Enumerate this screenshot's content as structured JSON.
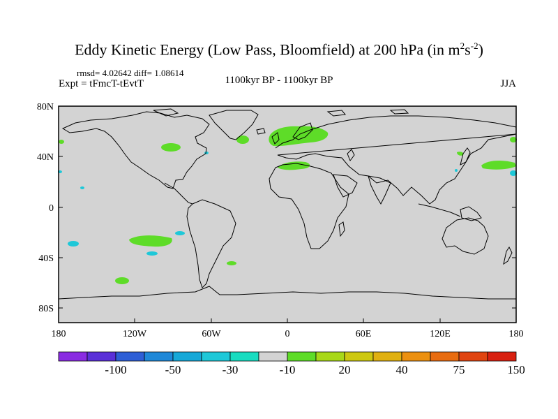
{
  "title_main": "Eddy Kinetic Energy (Low Pass, Bloomfield) at 200 hPa (in m",
  "title_sup1": "2",
  "title_mid": "s",
  "title_sup2": "-2",
  "title_end": ")",
  "stats": "rmsd= 4.02642 diff= 1.08614",
  "expt": "Expt = tFmcT-tEvtT",
  "period": "1100kyr BP - 1100kyr BP",
  "season": "JJA",
  "axes": {
    "lat_labels": [
      "80N",
      "40N",
      "0",
      "40S",
      "80S"
    ],
    "lon_labels": [
      "180",
      "120W",
      "60W",
      "0",
      "60E",
      "120E",
      "180"
    ]
  },
  "colorbar": {
    "colors": [
      "#8a2be2",
      "#5a30d8",
      "#2e5fd6",
      "#1f88d8",
      "#16a8d8",
      "#1ec8d8",
      "#18dcc0",
      "#d3d3d3",
      "#5edc28",
      "#a8d818",
      "#cdc810",
      "#e0b010",
      "#ec9010",
      "#e86c10",
      "#e04410",
      "#d82010"
    ],
    "labels": [
      "-100",
      "-50",
      "-30",
      "-10",
      "20",
      "40",
      "75",
      "150"
    ]
  },
  "colors": {
    "land_ocean_fill": "#d3d3d3",
    "positive_patch": "#5edc28",
    "negative_patch": "#1ec8d8"
  }
}
